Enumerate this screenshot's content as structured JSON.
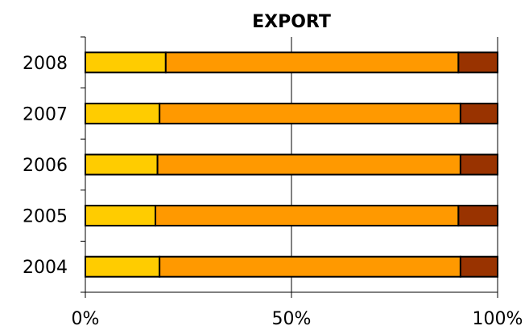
{
  "chart_data": {
    "type": "bar",
    "orientation": "horizontal",
    "stacked": "percent",
    "title": "EXPORT",
    "categories": [
      "2008",
      "2007",
      "2006",
      "2005",
      "2004"
    ],
    "series": [
      {
        "color": "#FFCC00",
        "values": [
          19.5,
          18,
          17.5,
          17,
          18
        ]
      },
      {
        "color": "#FF9900",
        "values": [
          71,
          73,
          73.5,
          73.5,
          73
        ]
      },
      {
        "color": "#993300",
        "values": [
          9.5,
          9,
          9,
          9.5,
          9
        ]
      }
    ],
    "xlim": [
      0,
      100
    ],
    "xticks": [
      {
        "value": 0,
        "label": "0%"
      },
      {
        "value": 50,
        "label": "50%"
      },
      {
        "value": 100,
        "label": "100%"
      }
    ],
    "grid": "vertical",
    "legend": "none"
  }
}
